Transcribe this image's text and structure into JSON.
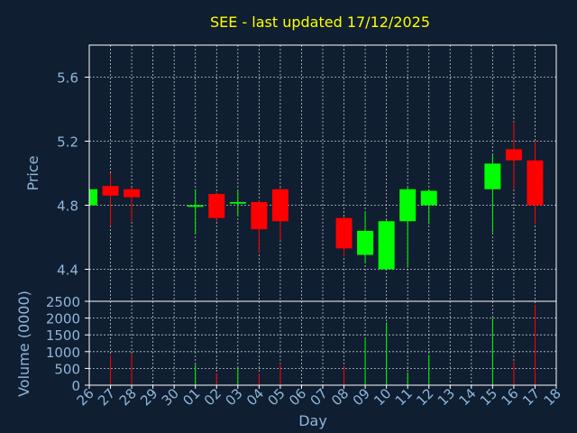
{
  "chart_data": {
    "type": "candlestick",
    "title": "SEE - last updated 17/12/2025",
    "xlabel": "Day",
    "ylabel_price": "Price",
    "ylabel_volume": "Volume (0000)",
    "x_ticks": [
      "26",
      "27",
      "28",
      "29",
      "30",
      "01",
      "02",
      "03",
      "04",
      "05",
      "06",
      "07",
      "08",
      "09",
      "10",
      "11",
      "12",
      "13",
      "14",
      "15",
      "16",
      "17",
      "18"
    ],
    "price_ticks": [
      "4.4",
      "4.8",
      "5.2",
      "5.6"
    ],
    "volume_ticks": [
      "0",
      "500",
      "1000",
      "1500",
      "2000",
      "2500"
    ],
    "price_ylim": [
      4.2,
      5.8
    ],
    "volume_ylim": [
      0,
      2500
    ],
    "grid": true,
    "colors": {
      "background": "#0f1e30",
      "up": "#00ff00",
      "down": "#ff0000",
      "title": "#ffff00",
      "axis": "#8fb6db",
      "frame": "#ffffff"
    },
    "candles": [
      {
        "day": "26",
        "open": 4.8,
        "high": 4.91,
        "low": 4.8,
        "close": 4.9,
        "volume": 0
      },
      {
        "day": "27",
        "open": 4.92,
        "high": 5.0,
        "low": 4.67,
        "close": 4.86,
        "volume": 900
      },
      {
        "day": "28",
        "open": 4.9,
        "high": 4.91,
        "low": 4.7,
        "close": 4.85,
        "volume": 950
      },
      {
        "day": "01",
        "open": 4.79,
        "high": 4.9,
        "low": 4.62,
        "close": 4.8,
        "volume": 620
      },
      {
        "day": "02",
        "open": 4.87,
        "high": 4.88,
        "low": 4.7,
        "close": 4.72,
        "volume": 350
      },
      {
        "day": "03",
        "open": 4.81,
        "high": 4.89,
        "low": 4.73,
        "close": 4.82,
        "volume": 520
      },
      {
        "day": "04",
        "open": 4.82,
        "high": 4.83,
        "low": 4.5,
        "close": 4.65,
        "volume": 350
      },
      {
        "day": "05",
        "open": 4.9,
        "high": 4.91,
        "low": 4.58,
        "close": 4.7,
        "volume": 650
      },
      {
        "day": "08",
        "open": 4.72,
        "high": 4.73,
        "low": 4.48,
        "close": 4.53,
        "volume": 550
      },
      {
        "day": "09",
        "open": 4.49,
        "high": 4.76,
        "low": 4.44,
        "close": 4.64,
        "volume": 1380
      },
      {
        "day": "10",
        "open": 4.4,
        "high": 4.71,
        "low": 4.4,
        "close": 4.7,
        "volume": 1870
      },
      {
        "day": "11",
        "open": 4.7,
        "high": 4.91,
        "low": 4.41,
        "close": 4.9,
        "volume": 380
      },
      {
        "day": "12",
        "open": 4.8,
        "high": 4.9,
        "low": 4.68,
        "close": 4.89,
        "volume": 900
      },
      {
        "day": "15",
        "open": 4.9,
        "high": 5.12,
        "low": 4.63,
        "close": 5.06,
        "volume": 2000
      },
      {
        "day": "16",
        "open": 5.15,
        "high": 5.32,
        "low": 4.9,
        "close": 5.08,
        "volume": 700
      },
      {
        "day": "17",
        "open": 5.08,
        "high": 5.2,
        "low": 4.68,
        "close": 4.8,
        "volume": 2400
      }
    ]
  }
}
